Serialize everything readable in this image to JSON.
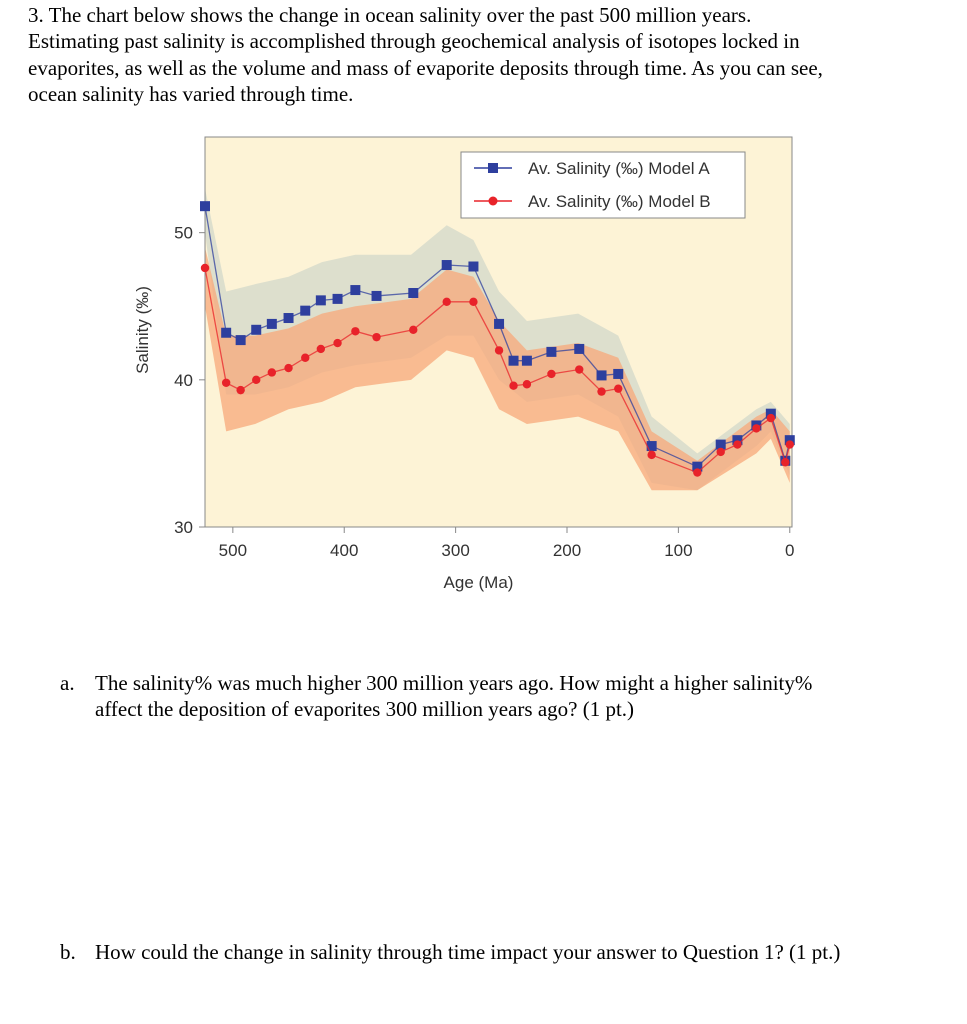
{
  "intro": [
    "3. The chart below shows the change in ocean salinity over the past 500 million years.",
    "Estimating past salinity is accomplished through geochemical analysis of isotopes locked in",
    "evaporites, as well as the volume and mass of evaporite deposits through time. As you can see,",
    "ocean salinity has varied through time."
  ],
  "chart_data": {
    "type": "line",
    "xlabel": "Age (Ma)",
    "ylabel": "Salinity (‰)",
    "xlim": [
      525,
      -2
    ],
    "ylim": [
      30,
      56.5
    ],
    "xticks": [
      500,
      400,
      300,
      200,
      100,
      0
    ],
    "yticks": [
      30,
      40,
      50
    ],
    "plot_background": "#fdf3d6",
    "legend": "upper right",
    "x": [
      525,
      506,
      493,
      479,
      465,
      450,
      435,
      421,
      406,
      390,
      371,
      338,
      308,
      284,
      261,
      248,
      236,
      214,
      189,
      169,
      154,
      124,
      83,
      62,
      47,
      30,
      17,
      4,
      0
    ],
    "series": [
      {
        "name": "Av. Salinity (‰) Model A",
        "color": "#2e3f9e",
        "marker": "square",
        "values": [
          51.8,
          43.2,
          42.7,
          43.4,
          43.8,
          44.2,
          44.7,
          45.4,
          45.5,
          46.1,
          45.7,
          45.9,
          47.8,
          47.7,
          43.8,
          41.3,
          41.3,
          41.9,
          42.1,
          40.3,
          40.4,
          35.5,
          34.1,
          35.6,
          35.9,
          36.9,
          37.7,
          34.5,
          35.9
        ],
        "band": {
          "color": "#d9ddcc",
          "x": [
            525,
            506,
            480,
            450,
            420,
            390,
            340,
            308,
            284,
            261,
            236,
            190,
            154,
            124,
            83,
            30,
            17,
            0
          ],
          "upper": [
            53,
            46,
            46.5,
            47,
            48,
            48.5,
            48.5,
            50.5,
            49.5,
            46,
            44,
            44.5,
            43,
            37.5,
            35,
            38,
            38.5,
            37
          ],
          "lower": [
            50,
            39,
            39,
            39.5,
            40.5,
            41,
            41.5,
            43,
            43,
            40,
            38.5,
            39,
            37.5,
            33,
            32.5,
            35.5,
            36.5,
            33.5
          ]
        }
      },
      {
        "name": "Av. Salinity (‰) Model B",
        "color": "#e8232a",
        "marker": "circle",
        "values": [
          47.6,
          39.8,
          39.3,
          40.0,
          40.5,
          40.8,
          41.5,
          42.1,
          42.5,
          43.3,
          42.9,
          43.4,
          45.3,
          45.3,
          42.0,
          39.6,
          39.7,
          40.4,
          40.7,
          39.2,
          39.4,
          34.9,
          33.7,
          35.1,
          35.6,
          36.7,
          37.4,
          34.4,
          35.6
        ],
        "band": {
          "color": "#f7a87a",
          "x": [
            525,
            506,
            480,
            450,
            420,
            390,
            340,
            308,
            284,
            261,
            236,
            190,
            154,
            124,
            83,
            30,
            17,
            0
          ],
          "upper": [
            49,
            43,
            43,
            43.5,
            44.5,
            45,
            45.5,
            47.5,
            47,
            44,
            42,
            42.5,
            41.5,
            36.5,
            34.5,
            37.5,
            38,
            36.5
          ],
          "lower": [
            45,
            36.5,
            37,
            38,
            38.5,
            39.5,
            40,
            42,
            41.5,
            38,
            37,
            37.5,
            36.5,
            32.5,
            32.5,
            35,
            36,
            33
          ]
        }
      }
    ]
  },
  "questions": [
    {
      "label": "a.",
      "lines": [
        "The salinity% was much higher 300 million years ago. How might a higher salinity%",
        "affect the deposition of evaporites 300 million years ago? (1 pt.)"
      ]
    },
    {
      "label": "b.",
      "lines": [
        "How could the change in salinity through time impact your answer to Question 1? (1 pt.)"
      ]
    }
  ]
}
